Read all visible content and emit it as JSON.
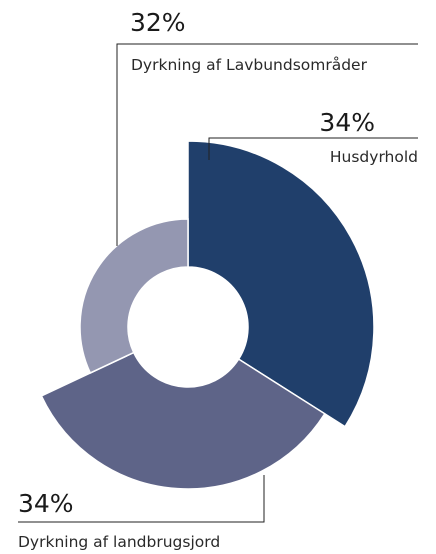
{
  "chart_data": {
    "type": "pie",
    "variant": "variable-radius donut",
    "title": "",
    "categories": [
      "Husdyrhold",
      "Dyrkning af landbrugsjord",
      "Dyrkning af Lavbundsområder"
    ],
    "values": [
      34,
      34,
      32
    ],
    "labels": [
      "34%",
      "34%",
      "32%"
    ],
    "colors": [
      "#203f6b",
      "#5e6488",
      "#9497b1"
    ],
    "start": "12 o'clock",
    "direction": "clockwise",
    "grid": false,
    "legend": "none"
  }
}
